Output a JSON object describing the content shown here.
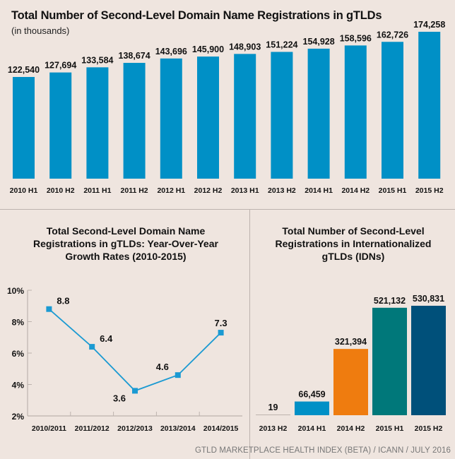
{
  "footer": "GTLD MARKETPLACE HEALTH INDEX (BETA)  / ICANN / JULY 2016",
  "colors": {
    "background": "#efe5df",
    "bar_blue": "#0090c6",
    "line_blue": "#1b9ad2",
    "orange": "#ef7c0f",
    "teal": "#00787a",
    "navy": "#00507a",
    "divider": "#bdb3ae"
  },
  "chart_data": [
    {
      "type": "bar",
      "title": "Total Number of Second-Level Domain Name Registrations in gTLDs",
      "subtitle": "(in thousands)",
      "xlabel": "",
      "ylabel": "",
      "categories": [
        "2010 H1",
        "2010 H2",
        "2011 H1",
        "2011 H2",
        "2012 H1",
        "2012 H2",
        "2013 H1",
        "2013 H2",
        "2014 H1",
        "2014 H2",
        "2015 H1",
        "2015 H2"
      ],
      "values": [
        122540,
        127694,
        133584,
        138674,
        143696,
        145900,
        148903,
        151224,
        154928,
        158596,
        162726,
        174258
      ],
      "value_labels": [
        "122,540",
        "127,694",
        "133,584",
        "138,674",
        "143,696",
        "145,900",
        "148,903",
        "151,224",
        "154,928",
        "158,596",
        "162,726",
        "174,258"
      ],
      "ylim": [
        0,
        180000
      ],
      "grid": false,
      "legend": "none"
    },
    {
      "type": "line",
      "title": "Total Second-Level Domain Name Registrations in gTLDs: Year-Over-Year Growth Rates (2010-2015)",
      "title_lines": [
        "Total Second-Level Domain Name",
        "Registrations in gTLDs: Year-Over-Year",
        "Growth Rates (2010-2015)"
      ],
      "xlabel": "",
      "ylabel": "",
      "categories": [
        "2010/2011",
        "2011/2012",
        "2012/2013",
        "2013/2014",
        "2014/2015"
      ],
      "values": [
        8.8,
        6.4,
        3.6,
        4.6,
        7.3
      ],
      "value_labels": [
        "8.8",
        "6.4",
        "3.6",
        "4.6",
        "7.3"
      ],
      "ylim": [
        2,
        10
      ],
      "yticks": [
        "2%",
        "4%",
        "6%",
        "8%",
        "10%"
      ],
      "ytick_values": [
        2,
        4,
        6,
        8,
        10
      ],
      "grid": false,
      "legend": "none"
    },
    {
      "type": "bar",
      "title": "Total Number of Second-Level Registrations in Internationalized gTLDs (IDNs)",
      "title_lines": [
        "Total Number of Second-Level",
        "Registrations in Internationalized",
        "gTLDs (IDNs)"
      ],
      "xlabel": "",
      "ylabel": "",
      "categories": [
        "2013 H2",
        "2014 H1",
        "2014 H2",
        "2015 H1",
        "2015 H2"
      ],
      "values": [
        19,
        66459,
        321394,
        521132,
        530831
      ],
      "value_labels": [
        "19",
        "66,459",
        "321,394",
        "521,132",
        "530,831"
      ],
      "bar_colors": [
        "#bdb3ae",
        "#0090c6",
        "#ef7c0f",
        "#00787a",
        "#00507a"
      ],
      "ylim": [
        0,
        540000
      ],
      "grid": false,
      "legend": "none"
    }
  ]
}
